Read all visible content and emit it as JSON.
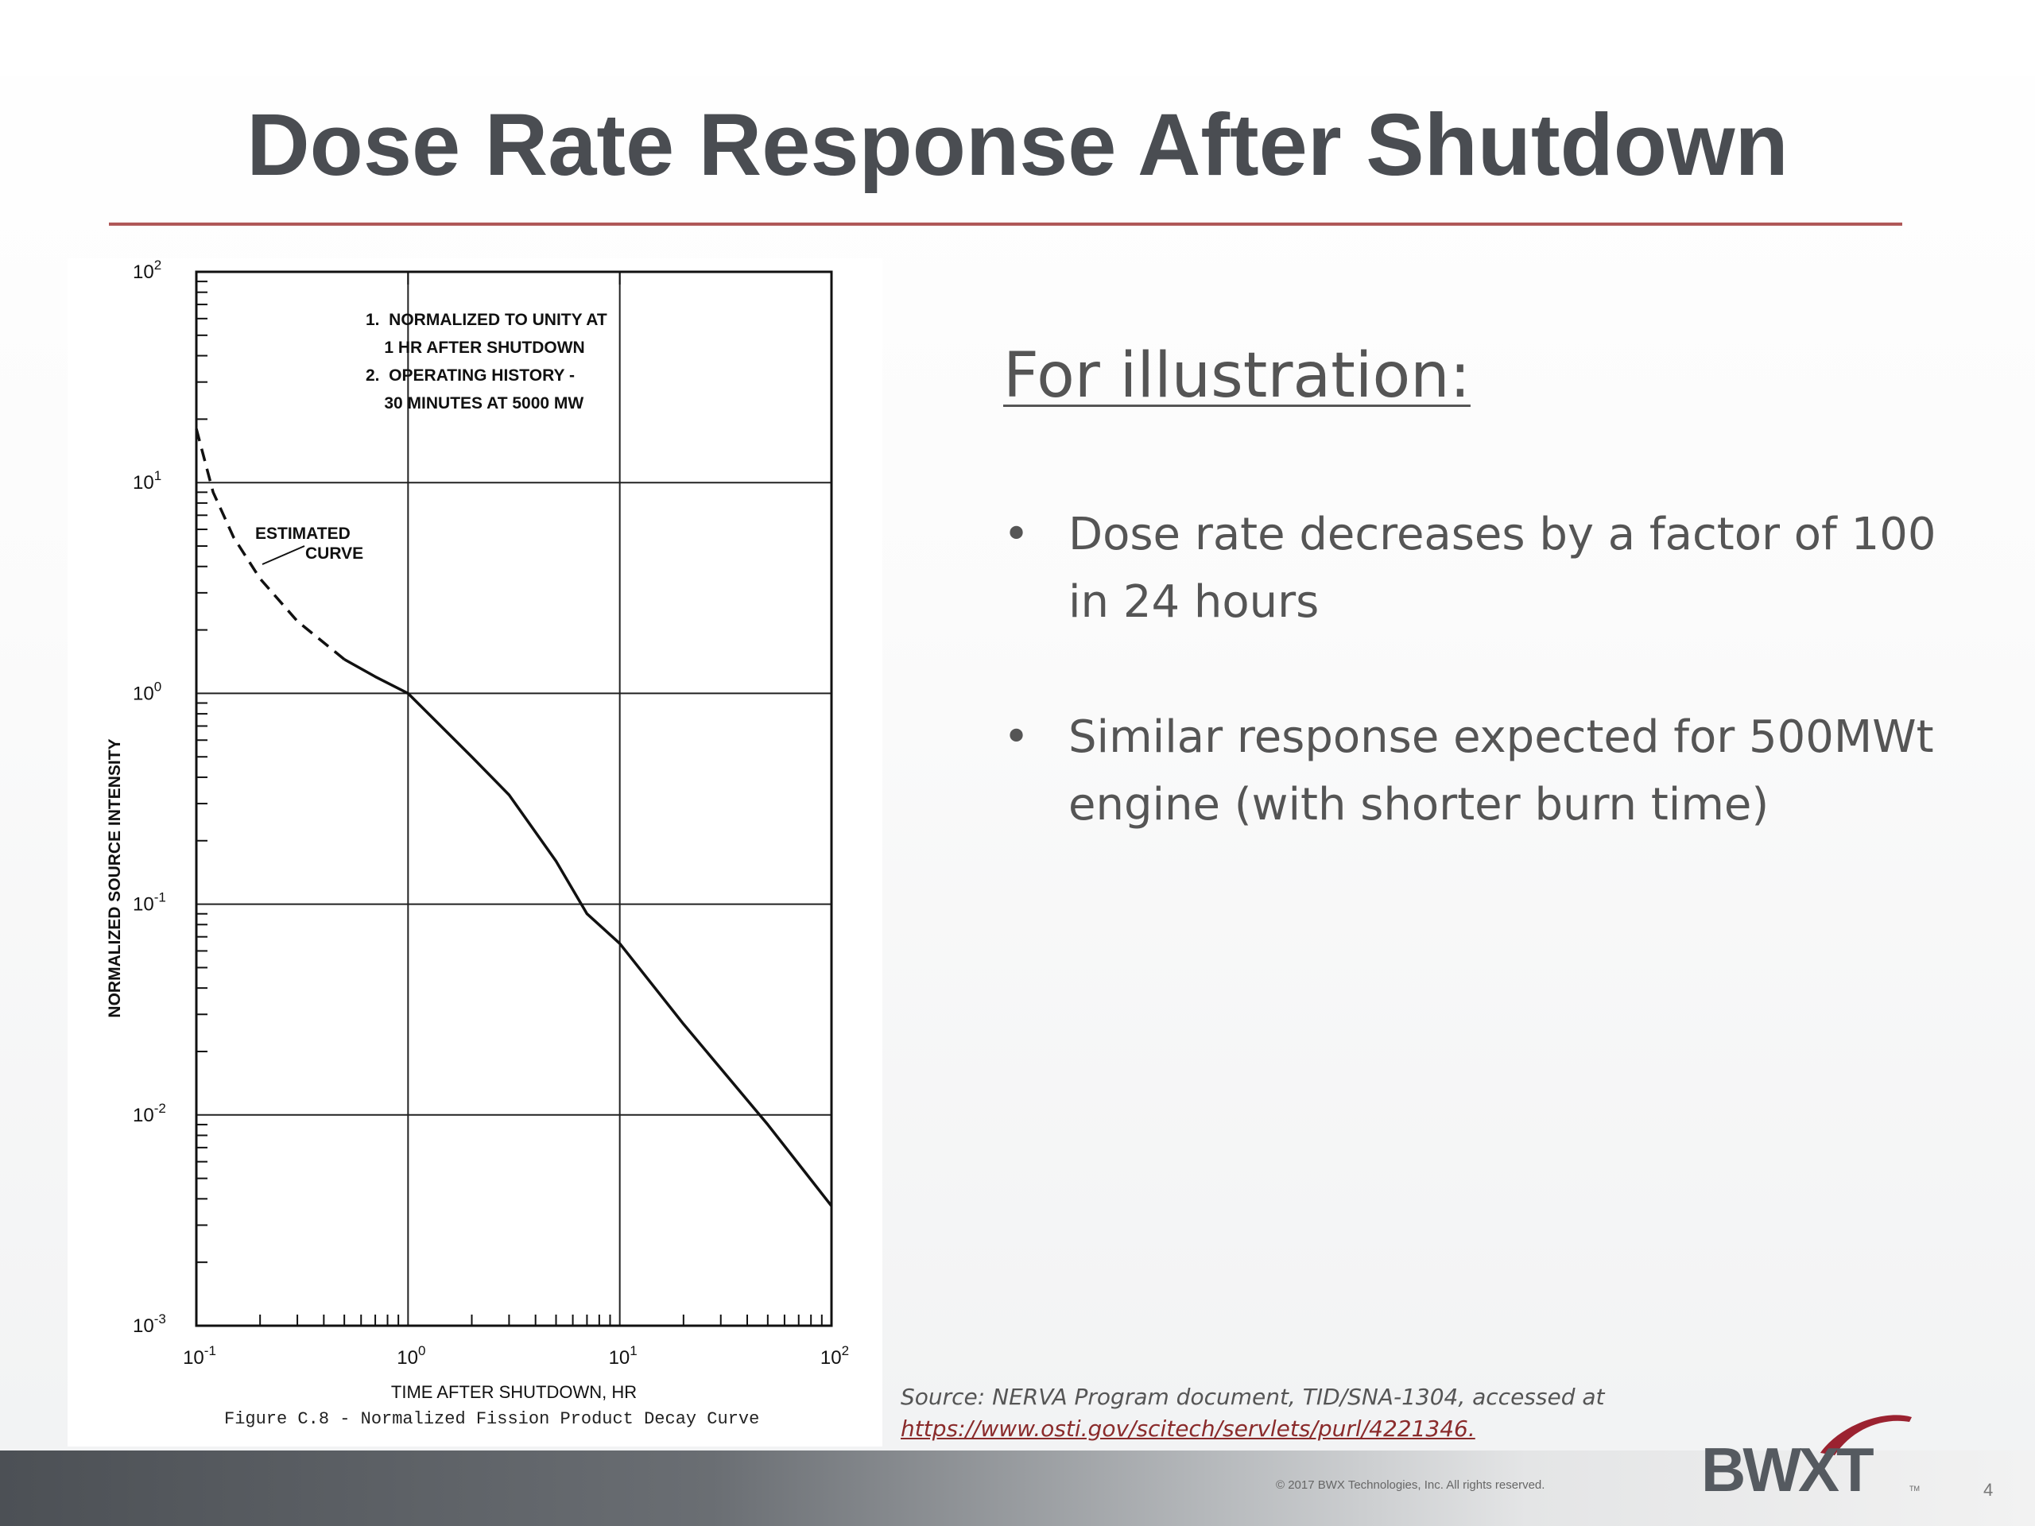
{
  "slide": {
    "title": "Dose Rate Response After Shutdown",
    "subheading": "For illustration:",
    "bullets": [
      "Dose rate decreases by a factor of 100 in 24 hours",
      "Similar response expected for 500MWt engine (with shorter burn time)"
    ],
    "bullet_symbol": "•",
    "source_label": "Source:  NERVA Program document, TID/SNA-1304, accessed at",
    "source_link": "https://www.osti.gov/scitech/servlets/purl/4221346.",
    "copyright": "© 2017 BWX Technologies, Inc. All rights reserved.",
    "logo_text": "BWXT",
    "logo_tm": "TM",
    "page_number": "4",
    "accent_color": "#b05858"
  },
  "chart_data": {
    "type": "line",
    "x_scale": "log",
    "y_scale": "log",
    "xlim": [
      0.1,
      100
    ],
    "ylim": [
      0.001,
      100
    ],
    "xlabel": "TIME AFTER SHUTDOWN, HR",
    "ylabel": "NORMALIZED SOURCE INTENSITY",
    "x_ticks": [
      {
        "value": 0.1,
        "base": "10",
        "exp": "-1"
      },
      {
        "value": 1,
        "base": "10",
        "exp": "0"
      },
      {
        "value": 10,
        "base": "10",
        "exp": "1"
      },
      {
        "value": 100,
        "base": "10",
        "exp": "2"
      }
    ],
    "y_ticks": [
      {
        "value": 100,
        "base": "10",
        "exp": "2"
      },
      {
        "value": 10,
        "base": "10",
        "exp": "1"
      },
      {
        "value": 1,
        "base": "10",
        "exp": "0"
      },
      {
        "value": 0.1,
        "base": "10",
        "exp": "-1"
      },
      {
        "value": 0.01,
        "base": "10",
        "exp": "-2"
      },
      {
        "value": 0.001,
        "base": "10",
        "exp": "-3"
      }
    ],
    "grid": true,
    "caption": "Figure C.8 - Normalized Fission Product Decay Curve",
    "notes": [
      "1.  NORMALIZED TO UNITY AT",
      "    1 HR AFTER SHUTDOWN",
      "2.  OPERATING HISTORY -",
      "    30 MINUTES AT 5000 MW"
    ],
    "annotation": [
      "ESTIMATED",
      "CURVE"
    ],
    "series": [
      {
        "style": "dashed",
        "x": [
          0.1,
          0.12,
          0.15,
          0.2,
          0.3,
          0.5
        ],
        "y": [
          18,
          9,
          5.5,
          3.5,
          2.2,
          1.45
        ]
      },
      {
        "style": "solid",
        "x": [
          0.5,
          0.7,
          1,
          2,
          3,
          5,
          7,
          10,
          20,
          50,
          100
        ],
        "y": [
          1.45,
          1.2,
          1.0,
          0.5,
          0.33,
          0.16,
          0.09,
          0.065,
          0.027,
          0.009,
          0.0037
        ]
      }
    ]
  }
}
